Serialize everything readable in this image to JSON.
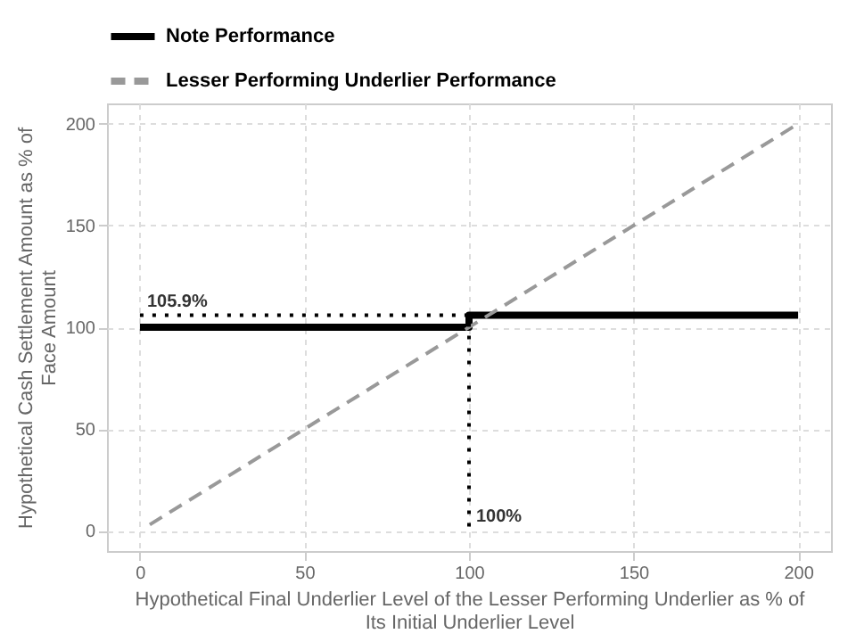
{
  "chart_data": {
    "type": "line",
    "xlabel": "Hypothetical Final Underlier Level of the Lesser Performing Underlier as % of Its Initial Underlier Level",
    "ylabel": "Hypothetical Cash Settlement Amount as % of Face Amount",
    "series": [
      {
        "name": "Note Performance",
        "color": "#000000",
        "line_style": "solid",
        "x": [
          0,
          100,
          100,
          200
        ],
        "values": [
          100,
          100,
          105.9,
          105.9
        ]
      },
      {
        "name": "Lesser Performing Underlier Performance",
        "color": "#999999",
        "line_style": "dashed",
        "x": [
          3,
          200
        ],
        "values": [
          3,
          200
        ]
      },
      {
        "color": "#000000",
        "line_style": "dotted",
        "x": [
          0,
          100,
          100
        ],
        "values": [
          105.9,
          105.9,
          0
        ]
      }
    ],
    "annotations": [
      {
        "text": "105.9%",
        "x": 0,
        "y": 105.9
      },
      {
        "text": "100%",
        "x": 100,
        "y": 0
      }
    ],
    "xlim": [
      -10,
      210
    ],
    "ylim": [
      -10,
      210
    ],
    "xticks": [
      0,
      50,
      100,
      150,
      200
    ],
    "yticks": [
      0,
      50,
      100,
      150,
      200
    ],
    "grid": true,
    "legend": "top",
    "marker": "none"
  }
}
